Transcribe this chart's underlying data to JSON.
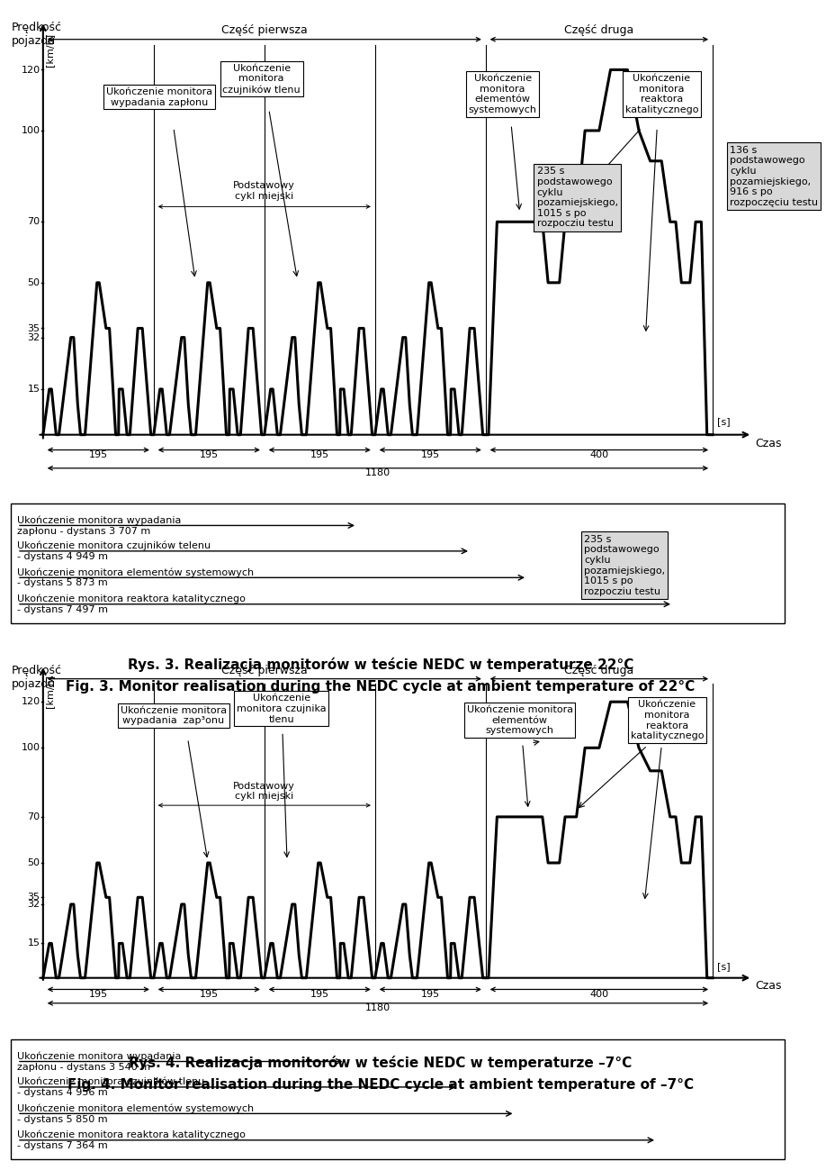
{
  "fig_width": 9.6,
  "fig_height": 13.68,
  "bg_color": "#ffffff",
  "chart1": {
    "title_pl": "Rys. 3. Realizacja monitorów w teście NEDC w temperaturze 22°C",
    "title_en": "Fig. 3. Monitor realisation during the NEDC cycle at ambient temperature of 22°C",
    "yticks": [
      15,
      32,
      35,
      50,
      70,
      100,
      120
    ],
    "box1_text": "Ukończenie monitora\nwypadania zapłonu",
    "box2_text": "Ukończenie\nmonitora\nczujników tlenu",
    "box3_text": "Ukończenie\nmonitora\nelementów\nsystemowych",
    "box4_text": "Ukończenie\nmonitora\nreaktora\nkatalitycznego",
    "podstawowy_text": "Podstawowy\ncykl miejski",
    "czesc_pierwsza": "Część pierwsza",
    "czesc_druga": "Część druga",
    "note1": "136 s\npodstawowego\ncyklu\npozamiejskiego,\n916 s po\nrozpoczęciu testu",
    "note2": "235 s\npodstawowego\ncyklu\npozamiejskiego,\n1015 s po\nrozpocziu testu",
    "dist1": "Ukończenie monitora wypadania\nzapłonu - dystans 3 707 m",
    "dist2": "Ukończenie monitora czujników telenu\n- dystans 4 949 m",
    "dist3": "Ukończenie monitora elementów systemowych\n- dystans 5 873 m",
    "dist4": "Ukończenie monitora reaktora katalitycznego\n- dystans 7 497 m"
  },
  "chart2": {
    "title_pl": "Rys. 4. Realizacja monitorów w teście NEDC w temperaturze –7°C",
    "title_en": "Fig. 4. Monitor realisation during the NEDC cycle at ambient temperature of –7°C",
    "yticks": [
      15,
      32,
      35,
      50,
      70,
      100,
      120
    ],
    "box1_text": "Ukończenie monitora\nwypadania  zap³onu",
    "box2_text": "Ukończenie\nmonitora czujnika\ntlenu",
    "box3_text": "Ukończenie monitora\nelementów\nsystemowych",
    "box4_text": "Ukończenie\nmonitora\nreaktora\nkatalitycznego",
    "podstawowy_text": "Podstawowy\ncykl miejski",
    "czesc_pierwsza": "Część pierwsza",
    "czesc_druga": "Część druga",
    "dist1": "Ukończenie monitora wypadania\nzapłonu - dystans 3 540 m",
    "dist2": "Ukończenie monitora czujników tlenu\n- dystans 4 956 m",
    "dist3": "Ukończenie monitora elementów systemowych\n- dystans 5 850 m",
    "dist4": "Ukończenie monitora reaktora katalitycznego\n- dystans 7 364 m"
  }
}
